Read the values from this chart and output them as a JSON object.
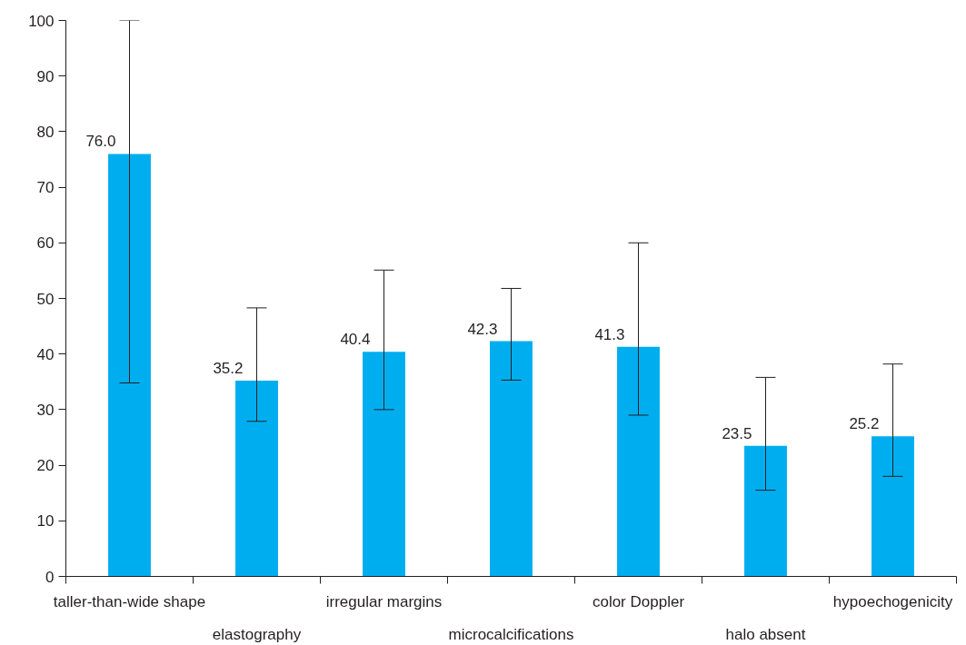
{
  "chart_data": {
    "type": "bar",
    "categories": [
      "taller-than-wide shape",
      "elastography",
      "irregular margins",
      "microcalcifications",
      "color Doppler",
      "halo absent",
      "hypoechogenicity"
    ],
    "values": [
      76.0,
      35.2,
      40.4,
      42.3,
      41.3,
      23.5,
      25.2
    ],
    "value_labels": [
      "76.0",
      "35.2",
      "40.4",
      "42.3",
      "41.3",
      "23.5",
      "25.2"
    ],
    "errors": [
      [
        34.8,
        100
      ],
      [
        27.9,
        48.3
      ],
      [
        30.0,
        55.1
      ],
      [
        35.3,
        51.8
      ],
      [
        29.0,
        60.0
      ],
      [
        15.5,
        35.8
      ],
      [
        18.0,
        38.2
      ]
    ],
    "color": "#00aeef",
    "ylim": [
      0,
      100
    ],
    "yticks": [
      0,
      10,
      20,
      30,
      40,
      50,
      60,
      70,
      80,
      90,
      100
    ]
  }
}
